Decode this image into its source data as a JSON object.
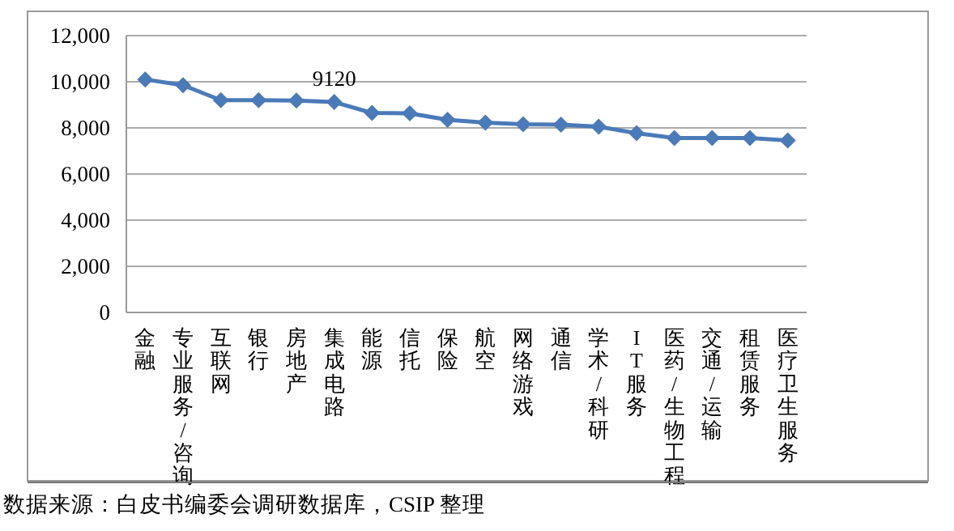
{
  "chart_data": {
    "type": "line",
    "categories": [
      "金融",
      "专业服务/咨询",
      "互联网",
      "银行",
      "房地产",
      "集成电路",
      "能源",
      "信托",
      "保险",
      "航空",
      "网络游戏",
      "通信",
      "学术/科研",
      "IT服务",
      "医药/生物工程",
      "交通/运输",
      "租赁服务",
      "医疗卫生服务"
    ],
    "series": [
      {
        "color": "#4a7ab8",
        "values": [
          10100,
          9850,
          9200,
          9200,
          9180,
          9120,
          8650,
          8630,
          8350,
          8230,
          8160,
          8140,
          8050,
          7770,
          7560,
          7560,
          7560,
          7460
        ]
      }
    ],
    "ylim": [
      0,
      12000
    ],
    "yticks": [
      {
        "value": 0,
        "label": "0"
      },
      {
        "value": 2000,
        "label": "2,000"
      },
      {
        "value": 4000,
        "label": "4,000"
      },
      {
        "value": 6000,
        "label": "6,000"
      },
      {
        "value": 8000,
        "label": "8,000"
      },
      {
        "value": 10000,
        "label": "10,000"
      },
      {
        "value": 12000,
        "label": "12,000"
      }
    ],
    "grid": "y",
    "marker": "diamond",
    "line_style": "solid",
    "annotations": [
      {
        "text": "9120",
        "x": "集成电路",
        "y": 9120
      },
      "数据来源：白皮书编委会调研数据库，CSIP 整理"
    ]
  }
}
